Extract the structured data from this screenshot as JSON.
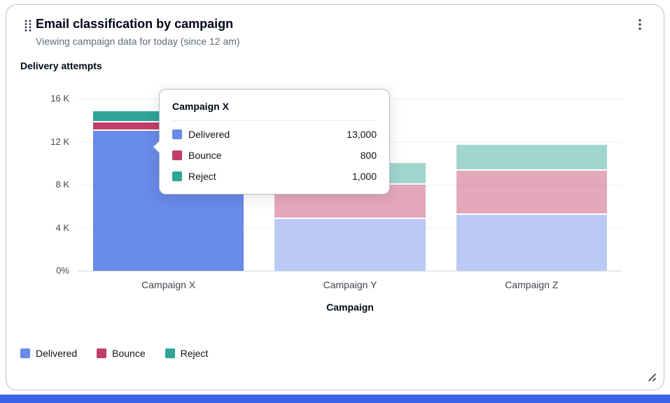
{
  "header": {
    "title": "Email classification by campaign",
    "subtitle": "Viewing campaign data for today (since 12 am)"
  },
  "icons": {
    "drag": "drag-indicator-icon",
    "menu": "ellipsis-vertical-icon",
    "resize": "resize-corner-icon"
  },
  "colors": {
    "bottom_bar": "#3B63E8",
    "faded_bar_opacity": 0.45
  },
  "chart_data": {
    "type": "bar",
    "stacked": true,
    "title": "Delivery attempts",
    "xlabel": "Campaign",
    "categories": [
      "Campaign X",
      "Campaign Y",
      "Campaign Z"
    ],
    "series": [
      {
        "name": "Delivered",
        "color": "#688AE8",
        "values": [
          13000,
          4800,
          5200
        ]
      },
      {
        "name": "Bounce",
        "color": "#C33D69",
        "values": [
          800,
          3200,
          4100
        ]
      },
      {
        "name": "Reject",
        "color": "#2EA597",
        "values": [
          1000,
          2000,
          2400
        ]
      }
    ],
    "y_ticks": [
      "16 K",
      "12 K",
      "8 K",
      "4 K",
      "0%"
    ],
    "ylim": [
      0,
      16000
    ],
    "grid": true,
    "legend_position": "bottom",
    "legend": [
      "Delivered",
      "Bounce",
      "Reject"
    ],
    "highlighted_category": "Campaign X"
  },
  "tooltip": {
    "title": "Campaign X",
    "rows": [
      {
        "label": "Delivered",
        "value": "13,000"
      },
      {
        "label": "Bounce",
        "value": "800"
      },
      {
        "label": "Reject",
        "value": "1,000"
      }
    ]
  }
}
